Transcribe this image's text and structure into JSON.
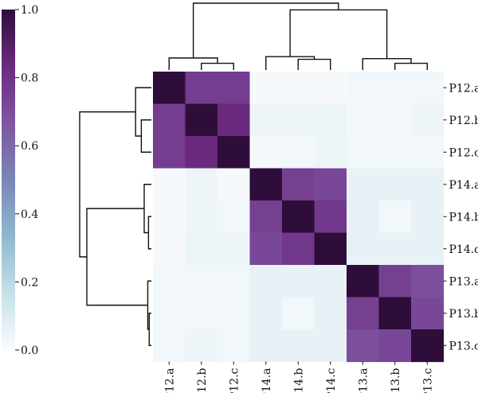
{
  "chart_data": {
    "type": "heatmap",
    "title": "",
    "labels": [
      "P12.a",
      "P12.b",
      "P12.c",
      "P14.a",
      "P14.b",
      "P14.c",
      "P13.a",
      "P13.b",
      "P13.c"
    ],
    "values": [
      [
        1.0,
        0.76,
        0.76,
        0.02,
        0.02,
        0.02,
        0.03,
        0.03,
        0.03
      ],
      [
        0.76,
        1.0,
        0.84,
        0.04,
        0.04,
        0.05,
        0.03,
        0.03,
        0.04
      ],
      [
        0.76,
        0.84,
        1.0,
        0.02,
        0.03,
        0.04,
        0.03,
        0.03,
        0.03
      ],
      [
        0.02,
        0.04,
        0.02,
        1.0,
        0.75,
        0.72,
        0.06,
        0.06,
        0.06
      ],
      [
        0.02,
        0.04,
        0.03,
        0.75,
        1.0,
        0.78,
        0.06,
        0.03,
        0.06
      ],
      [
        0.02,
        0.05,
        0.04,
        0.72,
        0.78,
        1.0,
        0.06,
        0.06,
        0.06
      ],
      [
        0.03,
        0.03,
        0.03,
        0.06,
        0.06,
        0.06,
        1.0,
        0.75,
        0.69
      ],
      [
        0.03,
        0.03,
        0.03,
        0.06,
        0.03,
        0.06,
        0.75,
        1.0,
        0.72
      ],
      [
        0.03,
        0.04,
        0.03,
        0.06,
        0.06,
        0.06,
        0.69,
        0.72,
        1.0
      ]
    ],
    "colorbar": {
      "min": 0.0,
      "max": 1.0,
      "ticks": [
        "0.0",
        "0.2",
        "0.4",
        "0.6",
        "0.8",
        "1.0"
      ],
      "colormap": [
        "#fbfcfd",
        "#c6e0ea",
        "#8fb8cf",
        "#7b85b8",
        "#7f55a2",
        "#6c2a80",
        "#2f0d3b"
      ]
    },
    "dendrogram": {
      "leaf_order": [
        "P12.a",
        "P12.b",
        "P12.c",
        "P14.a",
        "P14.b",
        "P14.c",
        "P13.a",
        "P13.b",
        "P13.c"
      ],
      "top_merges": [
        [
          1,
          2,
          0.1
        ],
        [
          0,
          9,
          0.18
        ],
        [
          4,
          5,
          0.16
        ],
        [
          3,
          11,
          0.2
        ],
        [
          7,
          8,
          0.1
        ],
        [
          6,
          13,
          0.17
        ],
        [
          12,
          14,
          0.9
        ],
        [
          10,
          15,
          1.0
        ]
      ],
      "left_merges": [
        [
          1,
          2,
          0.14
        ],
        [
          0,
          9,
          0.22
        ],
        [
          4,
          5,
          0.04
        ],
        [
          3,
          11,
          0.1
        ],
        [
          7,
          8,
          0.03
        ],
        [
          6,
          13,
          0.05
        ],
        [
          12,
          14,
          0.9
        ],
        [
          10,
          15,
          1.0
        ]
      ]
    }
  }
}
